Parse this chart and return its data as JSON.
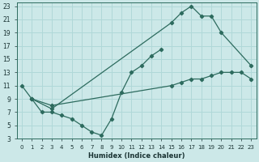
{
  "xlabel": "Humidex (Indice chaleur)",
  "bg_color": "#cce8e8",
  "grid_color": "#b0d8d8",
  "line_color": "#2d6b5e",
  "xlim": [
    -0.5,
    23.5
  ],
  "ylim": [
    3,
    23.5
  ],
  "xticks": [
    0,
    1,
    2,
    3,
    4,
    5,
    6,
    7,
    8,
    9,
    10,
    11,
    12,
    13,
    14,
    15,
    16,
    17,
    18,
    19,
    20,
    21,
    22,
    23
  ],
  "yticks": [
    3,
    5,
    7,
    9,
    11,
    13,
    15,
    17,
    19,
    21,
    23
  ],
  "line1_x": [
    0,
    1,
    2,
    3,
    4,
    5,
    6,
    7,
    8,
    9,
    10,
    11,
    12,
    13,
    14
  ],
  "line1_y": [
    11,
    9,
    7,
    7,
    6.5,
    6,
    5,
    4,
    3.5,
    6,
    10,
    13,
    14,
    15.5,
    16.5
  ],
  "line2_x": [
    1,
    3,
    15,
    16,
    17,
    18,
    19,
    20,
    23
  ],
  "line2_y": [
    9,
    7.5,
    20.5,
    22,
    23,
    21.5,
    21.5,
    19,
    14
  ],
  "line3_x": [
    1,
    3,
    15,
    16,
    17,
    18,
    19,
    20,
    21,
    22,
    23
  ],
  "line3_y": [
    9,
    8,
    11,
    11.5,
    12,
    12,
    12.5,
    13,
    13,
    13,
    12
  ]
}
